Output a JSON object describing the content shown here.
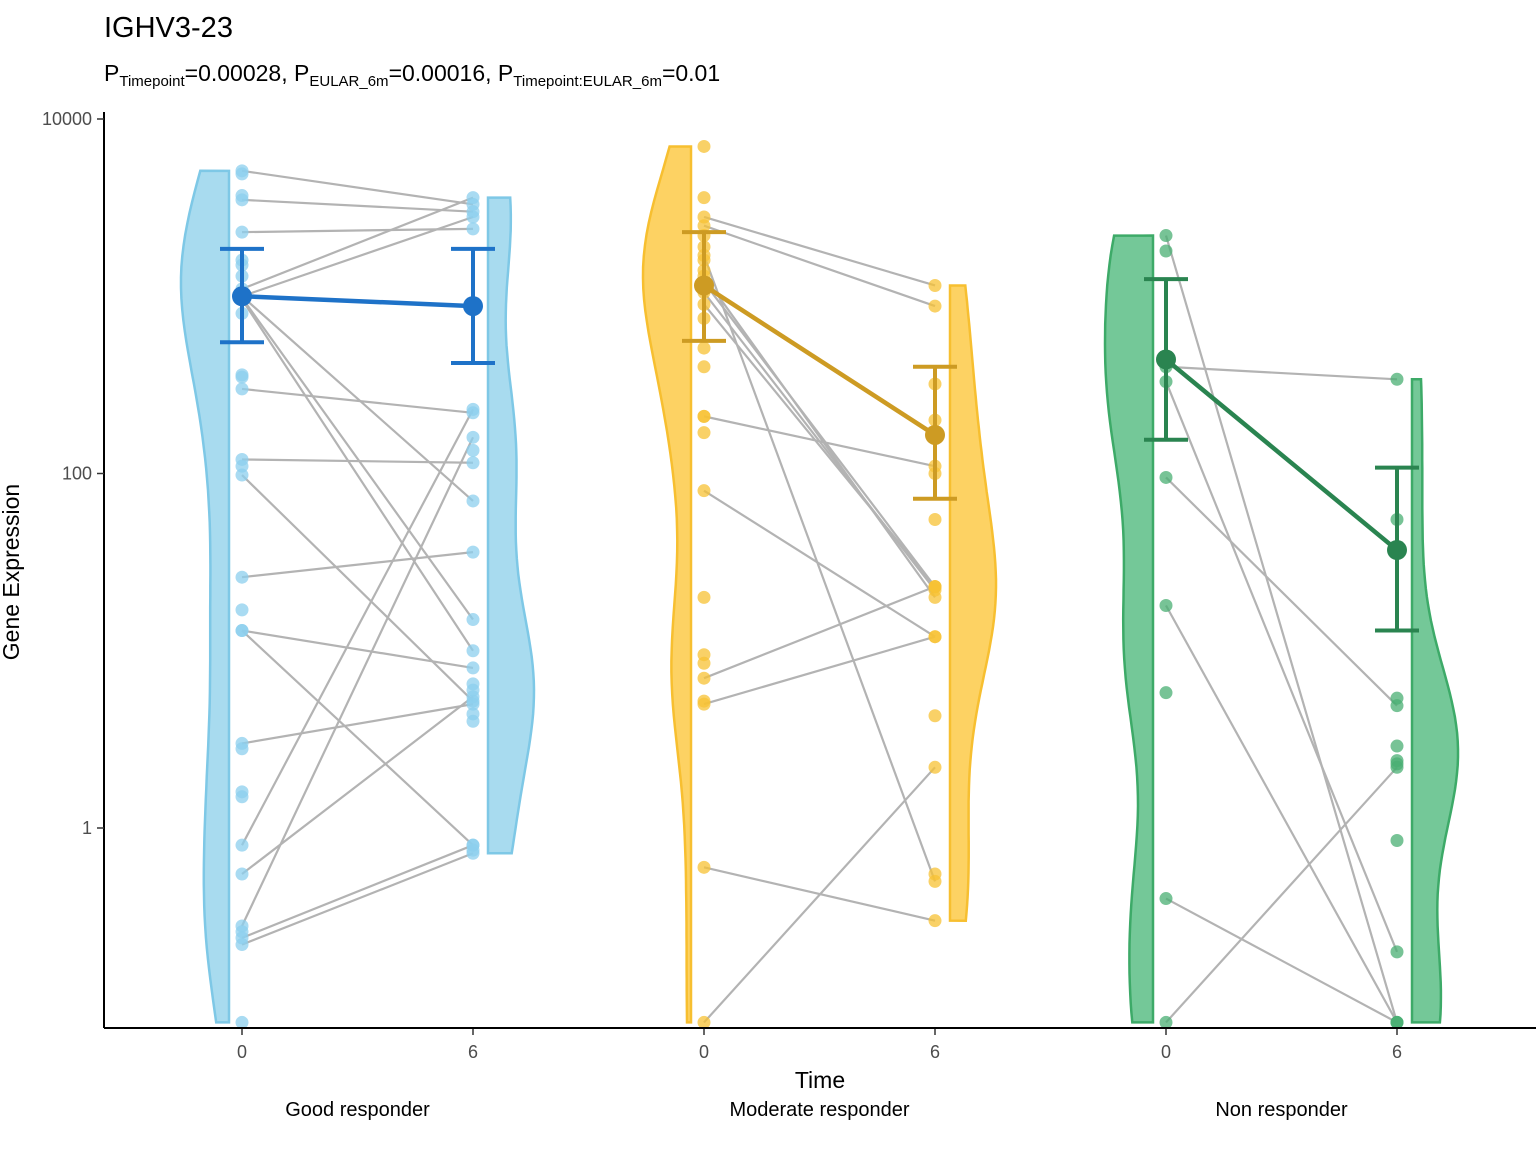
{
  "chart_data": {
    "type": "raincloud-paired",
    "title": "IGHV3-23",
    "subtitle": {
      "parts": [
        {
          "base": "P",
          "sub": "Timepoint",
          "text": "=0.00028, "
        },
        {
          "base": "P",
          "sub": "EULAR_6m",
          "text": "=0.00016, "
        },
        {
          "base": "P",
          "sub": "Timepoint:EULAR_6m",
          "text": "=0.01"
        }
      ]
    },
    "xlabel": "Time",
    "ylabel": "Gene Expression",
    "yscale": "log10",
    "ylim": [
      0.07,
      10000
    ],
    "yticks": [
      1,
      100,
      10000
    ],
    "ytick_labels": [
      "1",
      "100",
      "10000"
    ],
    "timepoints": [
      "0",
      "6"
    ],
    "groups": [
      {
        "name": "Good responder",
        "fill": "#a8dbef",
        "edge": "#7ec8e6",
        "point": "#8ccfee",
        "mean_color": "#1e72c8",
        "pairs": [
          [
            5100,
            3300
          ],
          [
            3500,
            3000
          ],
          [
            2300,
            2400
          ],
          [
            1100,
            3600
          ],
          [
            1000,
            2800
          ],
          [
            1000,
            70
          ],
          [
            980,
            15
          ],
          [
            960,
            10
          ],
          [
            300,
            220
          ],
          [
            120,
            115
          ],
          [
            98,
            5.2
          ],
          [
            26,
            36
          ],
          [
            13,
            8
          ],
          [
            13,
            0.8
          ],
          [
            3.0,
            5.0
          ],
          [
            0.8,
            230
          ],
          [
            0.55,
            5.5
          ],
          [
            0.28,
            160
          ],
          [
            0.24,
            0.8
          ],
          [
            0.22,
            0.72
          ]
        ],
        "extra_t0": [
          4900,
          3700,
          1600,
          1500,
          1300,
          800,
          360,
          350,
          110,
          17,
          2.8,
          1.6,
          1.5,
          0.26,
          0.08
        ],
        "extra_t6": [
          135,
          6.5,
          6.0,
          4.4,
          4.0,
          0.75
        ],
        "mean": [
          1000,
          880
        ],
        "ci_low": [
          550,
          420
        ],
        "ci_high": [
          1850,
          1850
        ],
        "violin_range": [
          0.08,
          5100
        ]
      },
      {
        "name": "Moderate responder",
        "fill": "#fdd263",
        "edge": "#f7bf30",
        "point": "#f7c234",
        "mean_color": "#cd9b23",
        "pairs": [
          [
            2800,
            1150
          ],
          [
            2500,
            880
          ],
          [
            1700,
            0.5
          ],
          [
            1300,
            20
          ],
          [
            1200,
            23
          ],
          [
            1050,
            22
          ],
          [
            900,
            23
          ],
          [
            210,
            110
          ],
          [
            80,
            12
          ],
          [
            7.0,
            23
          ],
          [
            5.0,
            12
          ],
          [
            0.6,
            0.3
          ],
          [
            0.08,
            2.2
          ]
        ],
        "extra_t0": [
          7000,
          3600,
          2200,
          1900,
          1600,
          1400,
          750,
          510,
          400,
          210,
          170,
          20,
          9.5,
          8.5,
          5.2
        ],
        "extra_t6": [
          320,
          200,
          100,
          55,
          4.3,
          0.55
        ],
        "mean": [
          1150,
          165
        ],
        "ci_low": [
          560,
          72
        ],
        "ci_high": [
          2300,
          400
        ],
        "violin_range": [
          0.08,
          7000
        ]
      },
      {
        "name": "Non responder",
        "fill": "#74c898",
        "edge": "#3daa68",
        "point": "#4aaf73",
        "mean_color": "#2a8450",
        "pairs": [
          [
            2200,
            0.08
          ],
          [
            400,
            340
          ],
          [
            330,
            0.2
          ],
          [
            95,
            4.9
          ],
          [
            18,
            0.08
          ],
          [
            0.4,
            0.08
          ],
          [
            0.08,
            2.2
          ]
        ],
        "extra_t0": [
          1800,
          5.8
        ],
        "extra_t6": [
          55,
          5.4,
          2.9,
          2.4,
          2.3,
          0.85
        ],
        "mean": [
          440,
          37
        ],
        "ci_low": [
          155,
          13
        ],
        "ci_high": [
          1250,
          108
        ],
        "violin_range": [
          0.08,
          2200
        ]
      }
    ]
  }
}
